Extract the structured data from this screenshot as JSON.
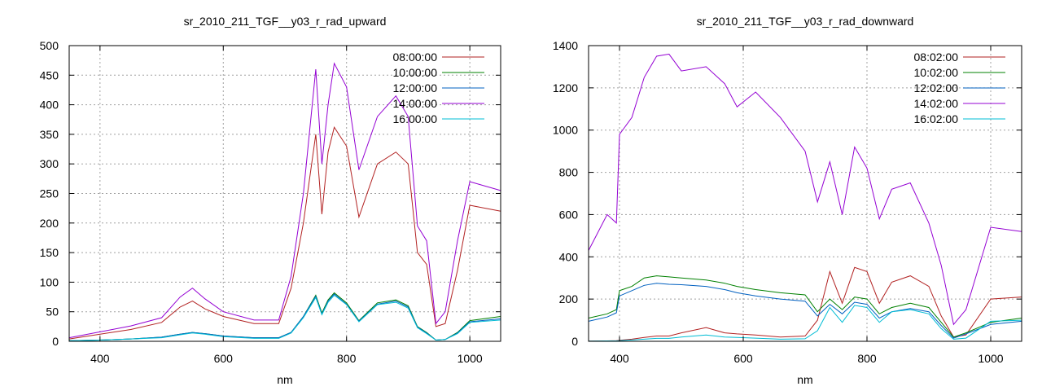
{
  "chart_data": [
    {
      "type": "line",
      "title": "sr_2010_211_TGF__y03_r_rad_upward",
      "xlabel": "nm",
      "ylabel": "",
      "xlim": [
        350,
        1050
      ],
      "ylim": [
        0,
        500
      ],
      "xticks": [
        400,
        600,
        800,
        1000
      ],
      "yticks": [
        0,
        50,
        100,
        150,
        200,
        250,
        300,
        350,
        400,
        450,
        500
      ],
      "grid": true,
      "legend_position": "top-right",
      "x": [
        350,
        400,
        450,
        500,
        530,
        550,
        570,
        600,
        650,
        690,
        710,
        730,
        750,
        760,
        770,
        780,
        800,
        820,
        850,
        880,
        900,
        915,
        930,
        945,
        960,
        980,
        1000,
        1050
      ],
      "series": [
        {
          "name": "08:00:00",
          "color": "#b22222",
          "values": [
            4,
            12,
            20,
            32,
            58,
            68,
            55,
            42,
            30,
            30,
            90,
            200,
            350,
            215,
            320,
            362,
            330,
            210,
            300,
            320,
            300,
            150,
            130,
            25,
            30,
            120,
            230,
            220
          ]
        },
        {
          "name": "10:00:00",
          "color": "#008000",
          "values": [
            1,
            2,
            4,
            7,
            12,
            15,
            13,
            9,
            6,
            6,
            15,
            42,
            78,
            48,
            70,
            82,
            65,
            35,
            65,
            70,
            60,
            25,
            15,
            2,
            3,
            15,
            35,
            42
          ]
        },
        {
          "name": "12:00:00",
          "color": "#0060c0",
          "values": [
            1,
            2,
            4,
            7,
            12,
            15,
            13,
            9,
            6,
            6,
            15,
            42,
            76,
            46,
            68,
            80,
            63,
            34,
            63,
            68,
            58,
            24,
            14,
            2,
            3,
            14,
            33,
            38
          ]
        },
        {
          "name": "14:00:00",
          "color": "#9400d3",
          "values": [
            6,
            16,
            26,
            40,
            75,
            90,
            72,
            50,
            36,
            36,
            110,
            250,
            460,
            300,
            400,
            470,
            430,
            290,
            380,
            415,
            380,
            195,
            170,
            30,
            50,
            170,
            270,
            255
          ]
        },
        {
          "name": "16:00:00",
          "color": "#00bcd4",
          "values": [
            1,
            2,
            4,
            6,
            11,
            14,
            12,
            8,
            5,
            5,
            14,
            40,
            74,
            45,
            66,
            78,
            62,
            33,
            62,
            66,
            56,
            23,
            13,
            2,
            3,
            13,
            32,
            36
          ]
        }
      ]
    },
    {
      "type": "line",
      "title": "sr_2010_211_TGF__y03_r_rad_downward",
      "xlabel": "nm",
      "ylabel": "",
      "xlim": [
        350,
        1050
      ],
      "ylim": [
        0,
        1400
      ],
      "xticks": [
        400,
        600,
        800,
        1000
      ],
      "yticks": [
        0,
        200,
        400,
        600,
        800,
        1000,
        1200,
        1400
      ],
      "grid": true,
      "legend_position": "top-right",
      "x": [
        350,
        380,
        395,
        400,
        420,
        440,
        460,
        480,
        500,
        540,
        570,
        590,
        620,
        660,
        700,
        720,
        740,
        760,
        780,
        800,
        820,
        840,
        870,
        900,
        920,
        940,
        960,
        1000,
        1050
      ],
      "series": [
        {
          "name": "08:02:00",
          "color": "#b22222",
          "values": [
            1,
            2,
            3,
            5,
            10,
            18,
            25,
            25,
            40,
            65,
            40,
            35,
            30,
            20,
            25,
            100,
            330,
            180,
            350,
            330,
            180,
            280,
            310,
            260,
            120,
            20,
            30,
            200,
            210
          ]
        },
        {
          "name": "10:02:00",
          "color": "#008000",
          "values": [
            110,
            130,
            150,
            240,
            260,
            300,
            310,
            305,
            300,
            290,
            275,
            260,
            245,
            230,
            220,
            140,
            200,
            150,
            210,
            200,
            130,
            160,
            180,
            160,
            90,
            20,
            40,
            90,
            110
          ]
        },
        {
          "name": "12:02:00",
          "color": "#0060c0",
          "values": [
            95,
            115,
            135,
            215,
            240,
            265,
            275,
            270,
            268,
            260,
            245,
            230,
            215,
            200,
            190,
            120,
            175,
            130,
            185,
            175,
            110,
            140,
            155,
            140,
            75,
            15,
            35,
            80,
            95
          ]
        },
        {
          "name": "14:02:00",
          "color": "#9400d3",
          "values": [
            430,
            600,
            560,
            980,
            1060,
            1250,
            1350,
            1360,
            1280,
            1300,
            1220,
            1110,
            1180,
            1060,
            900,
            660,
            850,
            600,
            920,
            820,
            580,
            720,
            750,
            560,
            360,
            80,
            150,
            540,
            520
          ]
        },
        {
          "name": "16:02:00",
          "color": "#00bcd4",
          "values": [
            1,
            2,
            2,
            3,
            6,
            10,
            14,
            14,
            20,
            30,
            20,
            18,
            15,
            10,
            12,
            50,
            160,
            90,
            170,
            160,
            90,
            140,
            150,
            130,
            60,
            10,
            15,
            95,
            100
          ]
        }
      ]
    }
  ]
}
